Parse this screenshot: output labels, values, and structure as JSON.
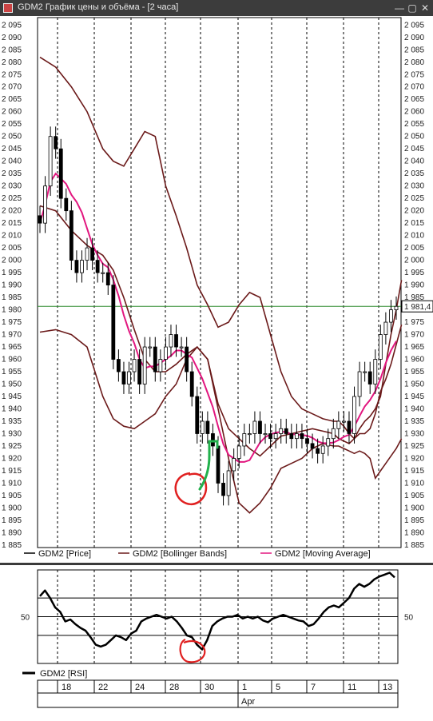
{
  "window": {
    "title": "GDM2 График цены и объёма - [2 часа]",
    "icons": [
      "chart-icon",
      "minimize-icon",
      "maximize-icon",
      "close-icon"
    ]
  },
  "chart_data": [
    {
      "type": "candlestick",
      "title": "",
      "ylim": [
        1884,
        2098
      ],
      "yticks": [
        2095,
        2090,
        2085,
        2080,
        2075,
        2070,
        2065,
        2060,
        2055,
        2050,
        2045,
        2040,
        2035,
        2030,
        2025,
        2020,
        2015,
        2010,
        2005,
        2000,
        1995,
        1990,
        1985,
        1980,
        1975,
        1970,
        1965,
        1960,
        1955,
        1950,
        1945,
        1940,
        1935,
        1930,
        1925,
        1920,
        1915,
        1910,
        1905,
        1900,
        1895,
        1890,
        1885
      ],
      "ytick_labels": [
        "2 095",
        "2 090",
        "2 085",
        "2 080",
        "2 075",
        "2 070",
        "2 065",
        "2 060",
        "2 055",
        "2 050",
        "2 045",
        "2 040",
        "2 035",
        "2 030",
        "2 025",
        "2 020",
        "2 015",
        "2 010",
        "2 005",
        "2 000",
        "1 995",
        "1 990",
        "1 985",
        "1 980",
        "1 975",
        "1 970",
        "1 965",
        "1 960",
        "1 955",
        "1 950",
        "1 945",
        "1 940",
        "1 935",
        "1 930",
        "1 925",
        "1 920",
        "1 915",
        "1 910",
        "1 905",
        "1 900",
        "1 895",
        "1 890",
        "1 885"
      ],
      "last_price": 1981.4,
      "last_price_label": "1 981,4",
      "legend_position": "bottom",
      "series": [
        {
          "name": "GDM2 [Price]",
          "color": "#000000",
          "values": [
            2015,
            2030,
            2050,
            2045,
            2025,
            2020,
            2000,
            1995,
            2000,
            2005,
            2000,
            1995,
            1995,
            1990,
            1960,
            1955,
            1950,
            1955,
            1960,
            1950,
            1965,
            1965,
            1955,
            1960,
            1965,
            1970,
            1965,
            1965,
            1955,
            1945,
            1930,
            1935,
            1930,
            1925,
            1910,
            1905,
            1915,
            1920,
            1925,
            1930,
            1930,
            1935,
            1930,
            1930,
            1928,
            1930,
            1932,
            1930,
            1928,
            1930,
            1928,
            1926,
            1924,
            1922,
            1925,
            1928,
            1932,
            1935,
            1935,
            1930,
            1945,
            1955,
            1955,
            1950,
            1960,
            1970,
            1975,
            1980,
            1981.4
          ]
        },
        {
          "name": "GDM2 [Bollinger Bands]",
          "color": "#6b1a1a",
          "upper": [
            2082,
            2078,
            2070,
            2060,
            2045,
            2040,
            2038,
            2045,
            2052,
            2050,
            2030,
            2018,
            2005,
            1990,
            1982,
            1973,
            1975,
            1982,
            1987,
            1985,
            1970,
            1955,
            1945,
            1940,
            1938,
            1936,
            1935,
            1935,
            1933,
            1930,
            1928,
            1932,
            1935,
            1937,
            1940,
            1945,
            1958,
            1970,
            1980,
            1992
          ],
          "middle": [
            2022,
            2020,
            2012,
            2006,
            2002,
            1996,
            1985,
            1972,
            1960,
            1955,
            1955,
            1958,
            1962,
            1965,
            1960,
            1942,
            1932,
            1928,
            1924,
            1921,
            1925,
            1929,
            1930,
            1931,
            1932,
            1931,
            1930,
            1928,
            1927,
            1926,
            1928,
            1930,
            1930,
            1932,
            1938,
            1947,
            1952,
            1958,
            1966,
            1974
          ],
          "lower": [
            1971,
            1972,
            1970,
            1965,
            1945,
            1936,
            1933,
            1932,
            1935,
            1938,
            1945,
            1950,
            1960,
            1965,
            1960,
            1940,
            1920,
            1902,
            1898,
            1902,
            1908,
            1916,
            1918,
            1920,
            1924,
            1926,
            1925,
            1925,
            1924,
            1923,
            1922,
            1923,
            1922,
            1920,
            1912,
            1915,
            1918,
            1921,
            1924,
            1928
          ],
          "x": [
            0,
            3,
            6,
            9,
            12,
            14,
            16,
            18,
            20,
            22,
            24,
            26,
            28,
            30,
            32,
            34,
            36,
            38,
            40,
            42,
            44,
            46,
            48,
            50,
            52,
            54,
            56,
            57,
            58,
            59,
            60,
            61,
            62,
            63,
            64,
            65,
            66,
            67,
            68,
            69
          ]
        },
        {
          "name": "GDM2 [Moving Average]",
          "color": "#e2177f"
        }
      ]
    },
    {
      "type": "line",
      "title": "",
      "ylim": [
        0,
        100
      ],
      "levels": [
        30,
        50,
        70
      ],
      "ytick_labels": [
        "50"
      ],
      "legend_position": "bottom",
      "series": [
        {
          "name": "GDM2 [RSI]",
          "color": "#000000",
          "values": [
            72,
            78,
            70,
            60,
            55,
            45,
            47,
            42,
            38,
            35,
            28,
            20,
            18,
            20,
            25,
            30,
            28,
            25,
            32,
            35,
            45,
            48,
            50,
            52,
            50,
            48,
            50,
            45,
            38,
            30,
            28,
            20,
            15,
            25,
            40,
            45,
            48,
            50,
            50,
            52,
            48,
            50,
            48,
            50,
            46,
            44,
            48,
            50,
            52,
            50,
            48,
            46,
            45,
            40,
            42,
            48,
            55,
            60,
            62,
            60,
            65,
            70,
            80,
            85,
            82,
            85,
            90,
            93,
            95,
            97,
            92
          ]
        }
      ]
    }
  ],
  "annotations": [
    {
      "kind": "hand-drawn-circle",
      "color": "#e02020",
      "chart": 0
    },
    {
      "kind": "hand-drawn-arrow",
      "color": "#22b14c",
      "chart": 0
    },
    {
      "kind": "hand-drawn-circle",
      "color": "#e02020",
      "chart": 1
    }
  ],
  "time_axis": {
    "day_labels": [
      "18",
      "22",
      "24",
      "28",
      "30",
      "1",
      "5",
      "7",
      "11",
      "13"
    ],
    "month_label": "Apr"
  },
  "colors": {
    "price": "#000000",
    "bollinger": "#6b1a1a",
    "moving_average": "#e2177f",
    "last_price_line": "#2e8b2e",
    "annotation_red": "#e02020",
    "annotation_green": "#22b14c"
  }
}
